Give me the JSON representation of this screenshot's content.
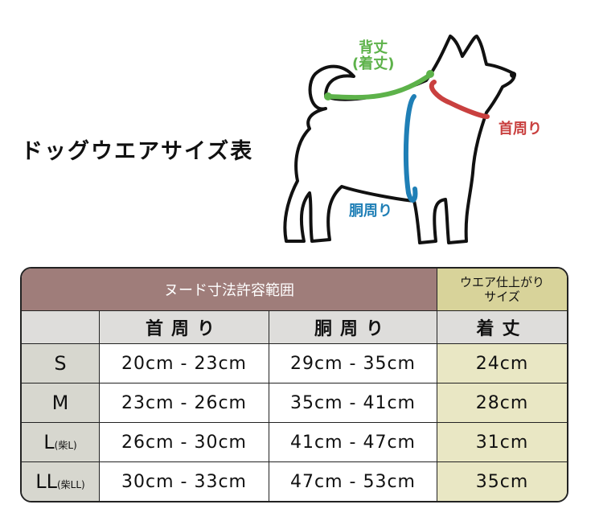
{
  "title": "ドッグウエアサイズ表",
  "diagram": {
    "back_length": "背丈",
    "back_length_sub": "(着丈)",
    "neck": "首周り",
    "chest": "胴周り",
    "colors": {
      "back": "#5db24a",
      "neck": "#c9403f",
      "chest": "#1f7fb6"
    }
  },
  "table": {
    "header_main": "ヌード寸法許容範囲",
    "header_side_line1": "ウエア仕上がり",
    "header_side_line2": "サイズ",
    "columns": [
      "首周り",
      "胴周り",
      "着丈"
    ],
    "rows": [
      {
        "size": "S",
        "size_note": "",
        "neck": "20cm - 23cm",
        "chest": "29cm - 35cm",
        "length": "24cm"
      },
      {
        "size": "M",
        "size_note": "",
        "neck": "23cm - 26cm",
        "chest": "35cm - 41cm",
        "length": "28cm"
      },
      {
        "size": "L",
        "size_note": "(柴L)",
        "neck": "26cm - 30cm",
        "chest": "41cm - 47cm",
        "length": "31cm"
      },
      {
        "size": "LL",
        "size_note": "(柴LL)",
        "neck": "30cm - 33cm",
        "chest": "47cm - 53cm",
        "length": "35cm"
      }
    ],
    "colors": {
      "header": "#9f7d7a",
      "finished": "#d8d39a",
      "finished_cells": "#e9e7c4"
    }
  }
}
